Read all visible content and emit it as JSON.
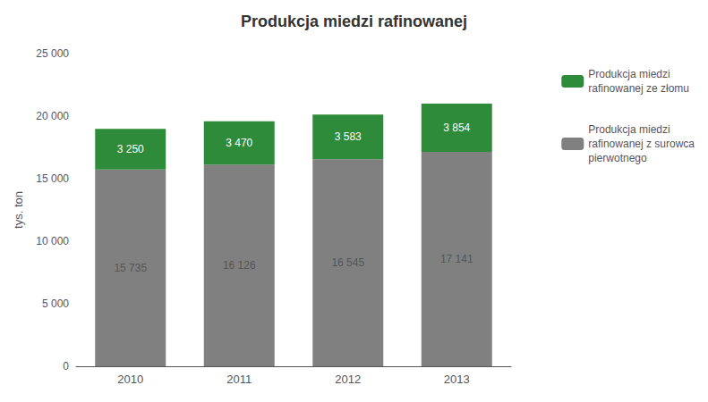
{
  "chart_data": {
    "type": "bar",
    "stacked": true,
    "title": "Produkcja miedzi rafinowanej",
    "categories": [
      "2010",
      "2011",
      "2012",
      "2013"
    ],
    "series": [
      {
        "name": "Produkcja miedzi\nrafinowanej z surowca\npierwotnego",
        "color": "#808080",
        "values": [
          15735,
          16126,
          16545,
          17141
        ],
        "value_labels": [
          "15 735",
          "16 126",
          "16 545",
          "17 141"
        ]
      },
      {
        "name": "Produkcja miedzi\nrafinowanej ze złomu",
        "color": "#2e8b3a",
        "values": [
          3250,
          3470,
          3583,
          3854
        ],
        "value_labels": [
          "3 250",
          "3 470",
          "3 583",
          "3 854"
        ]
      }
    ],
    "ylabel": "tys. ton",
    "ylim": [
      0,
      25000
    ],
    "yticks": [
      0,
      {
        "value": 5000,
        "label": "5 000"
      },
      {
        "value": 10000,
        "label": "10 000"
      },
      {
        "value": 15000,
        "label": "15 000"
      },
      {
        "value": 20000,
        "label": "20 000"
      },
      {
        "value": 25000,
        "label": "25 000"
      }
    ],
    "data_labels": true,
    "grid": false,
    "legend": "right"
  }
}
